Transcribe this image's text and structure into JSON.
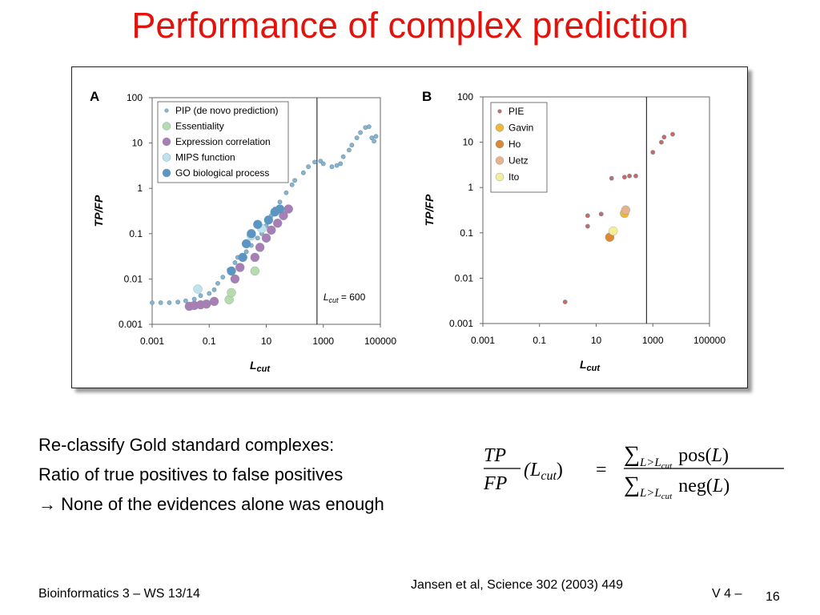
{
  "title": "Performance of complex prediction",
  "body_lines": [
    "Re-classify Gold standard complexes:",
    "Ratio of true positives to false positives",
    "→ None of the evidences alone was enough"
  ],
  "formula": {
    "lhs_num": "TP",
    "lhs_den": "FP",
    "lhs_arg": "(L",
    "lhs_arg_sub": "cut",
    "lhs_close": ")",
    "eq": "=",
    "sum": "∑",
    "sum_sub": "L>L",
    "sum_subsub": "cut",
    "num_fn": "pos(",
    "den_fn": "neg(",
    "var": "L",
    "close": ")"
  },
  "footer": {
    "course": "Bioinformatics 3 – WS 13/14",
    "citation": "Jansen et al, Science 302 (2003) 449",
    "slide": "V 4 –",
    "page": "16"
  },
  "chart_data": [
    {
      "type": "scatter",
      "panel": "A",
      "xlabel": "L",
      "xlabel_sub": "cut",
      "ylabel": "TP/FP",
      "x_scale": "log",
      "y_scale": "log",
      "xlim": [
        0.001,
        100000
      ],
      "ylim": [
        0.001,
        100
      ],
      "x_ticks": [
        "0.001",
        "0.1",
        "10",
        "1000",
        "100000"
      ],
      "y_ticks": [
        "100",
        "10",
        "1",
        "0.1",
        "0.01",
        "0.001"
      ],
      "legend_position": "top-left",
      "vline": 600,
      "annotation": {
        "text_main": "L",
        "text_sub": "cut",
        "text_rest": " = 600"
      },
      "series": [
        {
          "name": "PIP (de novo prediction)",
          "color": "#86b6cf",
          "marker": "small",
          "points": [
            [
              0.001,
              0.003
            ],
            [
              0.002,
              0.003
            ],
            [
              0.004,
              0.003
            ],
            [
              0.008,
              0.0031
            ],
            [
              0.015,
              0.0033
            ],
            [
              0.03,
              0.0036
            ],
            [
              0.05,
              0.0043
            ],
            [
              0.1,
              0.0048
            ],
            [
              0.15,
              0.0058
            ],
            [
              0.2,
              0.008
            ],
            [
              0.3,
              0.011
            ],
            [
              0.5,
              0.016
            ],
            [
              0.8,
              0.023
            ],
            [
              1,
              0.03
            ],
            [
              2,
              0.04
            ],
            [
              3,
              0.055
            ],
            [
              5,
              0.08
            ],
            [
              7,
              0.1
            ],
            [
              10,
              0.15
            ],
            [
              15,
              0.25
            ],
            [
              20,
              0.35
            ],
            [
              30,
              0.5
            ],
            [
              50,
              0.8
            ],
            [
              80,
              1.2
            ],
            [
              100,
              1.5
            ],
            [
              200,
              2.2
            ],
            [
              300,
              3
            ],
            [
              500,
              3.8
            ],
            [
              800,
              4
            ],
            [
              1000,
              3.5
            ],
            [
              2000,
              3
            ],
            [
              3000,
              3.2
            ],
            [
              4000,
              3.5
            ],
            [
              5000,
              5
            ],
            [
              8000,
              7
            ],
            [
              10000,
              9
            ],
            [
              15000,
              13
            ],
            [
              20000,
              17
            ],
            [
              30000,
              22
            ],
            [
              40000,
              23
            ],
            [
              50000,
              13
            ],
            [
              60000,
              11
            ],
            [
              70000,
              14
            ]
          ]
        },
        {
          "name": "Essentiality",
          "color": "#b6dcae",
          "marker": "large",
          "points": [
            [
              0.5,
              0.0035
            ],
            [
              0.6,
              0.005
            ],
            [
              4,
              0.015
            ]
          ]
        },
        {
          "name": "Expression correlation",
          "color": "#a77fb5",
          "marker": "large",
          "points": [
            [
              0.02,
              0.0025
            ],
            [
              0.03,
              0.0026
            ],
            [
              0.05,
              0.0027
            ],
            [
              0.08,
              0.0028
            ],
            [
              0.15,
              0.0032
            ],
            [
              0.8,
              0.01
            ],
            [
              1.2,
              0.018
            ],
            [
              4,
              0.03
            ],
            [
              6,
              0.05
            ],
            [
              10,
              0.08
            ],
            [
              15,
              0.12
            ],
            [
              25,
              0.17
            ],
            [
              40,
              0.25
            ],
            [
              60,
              0.35
            ]
          ]
        },
        {
          "name": "MIPS function",
          "color": "#bfe3ec",
          "marker": "large",
          "points": [
            [
              0.04,
              0.006
            ],
            [
              3,
              0.09
            ],
            [
              7,
              0.13
            ]
          ]
        },
        {
          "name": "GO biological process",
          "color": "#5b95c4",
          "marker": "large",
          "points": [
            [
              0.6,
              0.015
            ],
            [
              1.5,
              0.03
            ],
            [
              2,
              0.06
            ],
            [
              3,
              0.1
            ],
            [
              5,
              0.16
            ],
            [
              12,
              0.2
            ],
            [
              20,
              0.3
            ],
            [
              30,
              0.35
            ]
          ]
        }
      ]
    },
    {
      "type": "scatter",
      "panel": "B",
      "xlabel": "L",
      "xlabel_sub": "cut",
      "ylabel": "TP/FP",
      "x_scale": "log",
      "y_scale": "log",
      "xlim": [
        0.001,
        100000
      ],
      "ylim": [
        0.001,
        100
      ],
      "x_ticks": [
        "0.001",
        "0.1",
        "10",
        "1000",
        "100000"
      ],
      "y_ticks": [
        "100",
        "10",
        "1",
        "0.1",
        "0.01",
        "0.001"
      ],
      "legend_position": "top-left",
      "vline": 600,
      "series": [
        {
          "name": "PIE",
          "color": "#c96a65",
          "marker": "small",
          "points": [
            [
              0.8,
              0.003
            ],
            [
              5,
              0.14
            ],
            [
              5,
              0.24
            ],
            [
              15,
              0.26
            ],
            [
              35,
              1.6
            ],
            [
              100,
              1.7
            ],
            [
              150,
              1.8
            ],
            [
              250,
              1.8
            ],
            [
              1000,
              6
            ],
            [
              2000,
              10
            ],
            [
              2500,
              13
            ],
            [
              5000,
              15
            ]
          ]
        },
        {
          "name": "Gavin",
          "color": "#f0b732",
          "marker": "large",
          "points": [
            [
              100,
              0.27
            ]
          ]
        },
        {
          "name": "Ho",
          "color": "#dd8835",
          "marker": "large",
          "points": [
            [
              30,
              0.08
            ]
          ]
        },
        {
          "name": "Uetz",
          "color": "#e9b28f",
          "marker": "large",
          "points": [
            [
              110,
              0.32
            ]
          ]
        },
        {
          "name": "Ito",
          "color": "#f6ed9a",
          "marker": "large",
          "points": [
            [
              40,
              0.11
            ]
          ]
        }
      ]
    }
  ]
}
